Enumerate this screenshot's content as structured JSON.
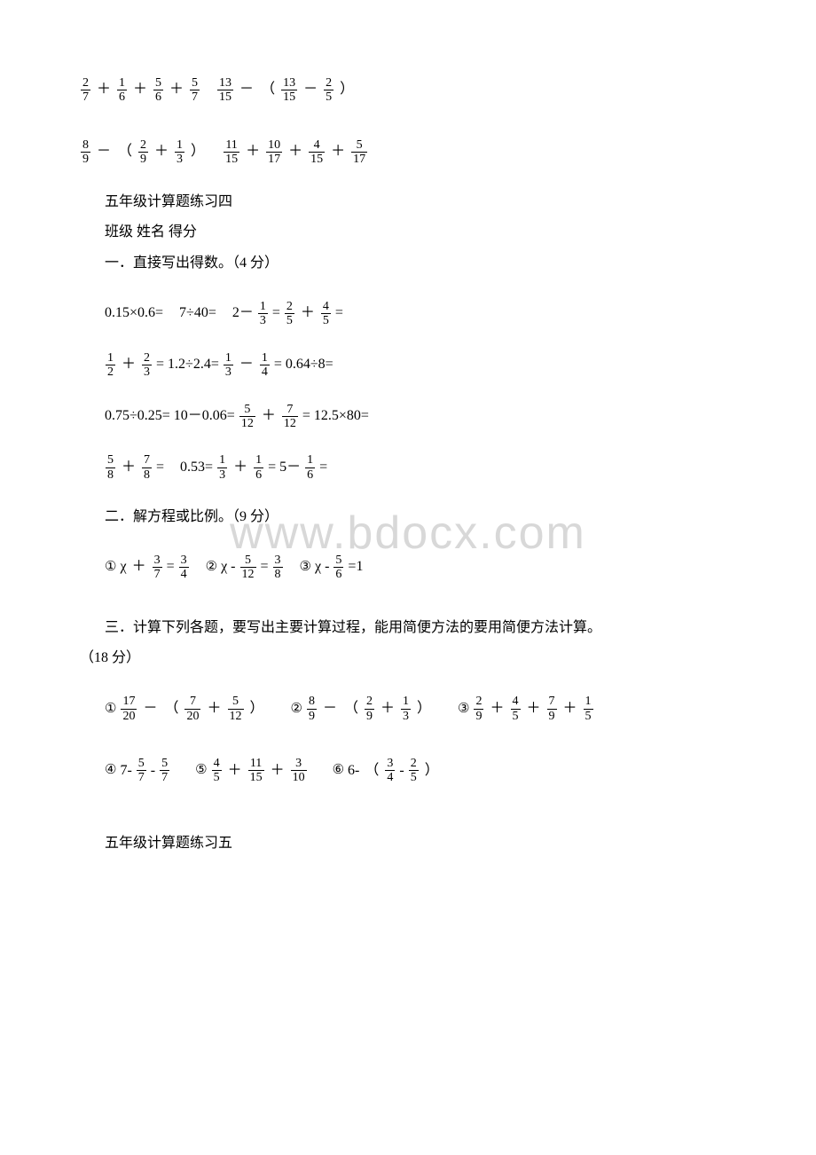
{
  "watermark": "www.bdocx.com",
  "fractions": {
    "f2_7": {
      "n": "2",
      "d": "7"
    },
    "f1_6": {
      "n": "1",
      "d": "6"
    },
    "f5_6": {
      "n": "5",
      "d": "6"
    },
    "f5_7": {
      "n": "5",
      "d": "7"
    },
    "f13_15": {
      "n": "13",
      "d": "15"
    },
    "f2_5": {
      "n": "2",
      "d": "5"
    },
    "f8_9": {
      "n": "8",
      "d": "9"
    },
    "f2_9": {
      "n": "2",
      "d": "9"
    },
    "f1_3": {
      "n": "1",
      "d": "3"
    },
    "f11_15": {
      "n": "11",
      "d": "15"
    },
    "f10_17": {
      "n": "10",
      "d": "17"
    },
    "f4_15": {
      "n": "4",
      "d": "15"
    },
    "f5_17": {
      "n": "5",
      "d": "17"
    },
    "f4_5": {
      "n": "4",
      "d": "5"
    },
    "f1_2": {
      "n": "1",
      "d": "2"
    },
    "f2_3": {
      "n": "2",
      "d": "3"
    },
    "f1_4": {
      "n": "1",
      "d": "4"
    },
    "f5_12": {
      "n": "5",
      "d": "12"
    },
    "f7_12": {
      "n": "7",
      "d": "12"
    },
    "f5_8": {
      "n": "5",
      "d": "8"
    },
    "f7_8": {
      "n": "7",
      "d": "8"
    },
    "f3_7": {
      "n": "3",
      "d": "7"
    },
    "f3_4": {
      "n": "3",
      "d": "4"
    },
    "f3_8": {
      "n": "3",
      "d": "8"
    },
    "f5_6f": {
      "n": "5",
      "d": "6"
    },
    "f17_20": {
      "n": "17",
      "d": "20"
    },
    "f7_20": {
      "n": "7",
      "d": "20"
    },
    "f7_9": {
      "n": "7",
      "d": "9"
    },
    "f1_5": {
      "n": "1",
      "d": "5"
    },
    "f3_10": {
      "n": "3",
      "d": "10"
    }
  },
  "labels": {
    "title4": "五年级计算题练习四",
    "header": "班级  姓名  得分",
    "sec1": "一．直接写出得数。（4 分）",
    "sec2": "二．解方程或比例。（9 分）",
    "sec3": "三．计算下列各题，要写出主要计算过程，能用简便方法的要用简便方法计算。",
    "sec3b": "（18 分）",
    "title5": "五年级计算题练习五",
    "eq": "＝",
    "plus": "＋",
    "minus": "－",
    "lp": "（",
    "rp": "）",
    "chi": "χ",
    "dash": "-",
    "circled": {
      "1": "①",
      "2": "②",
      "3": "③",
      "4": "④",
      "5": "⑤",
      "6": "⑥"
    },
    "r1a": "0.15×0.6=",
    "r1b": "7÷40=",
    "r1c": "2－",
    "r2b": "= 1.2÷2.4=",
    "r2d": "= 0.64÷8=",
    "r3a": "0.75÷0.25= 10－0.06=",
    "r3c": "= 12.5×80=",
    "r4a": "=",
    "r4b": "0.53=",
    "r4d": "= 5－",
    "r4e": "=",
    "eqtxt": "=",
    "one": "=1",
    "p5a": "7-",
    "p5b": "-",
    "p6a": "6-"
  }
}
